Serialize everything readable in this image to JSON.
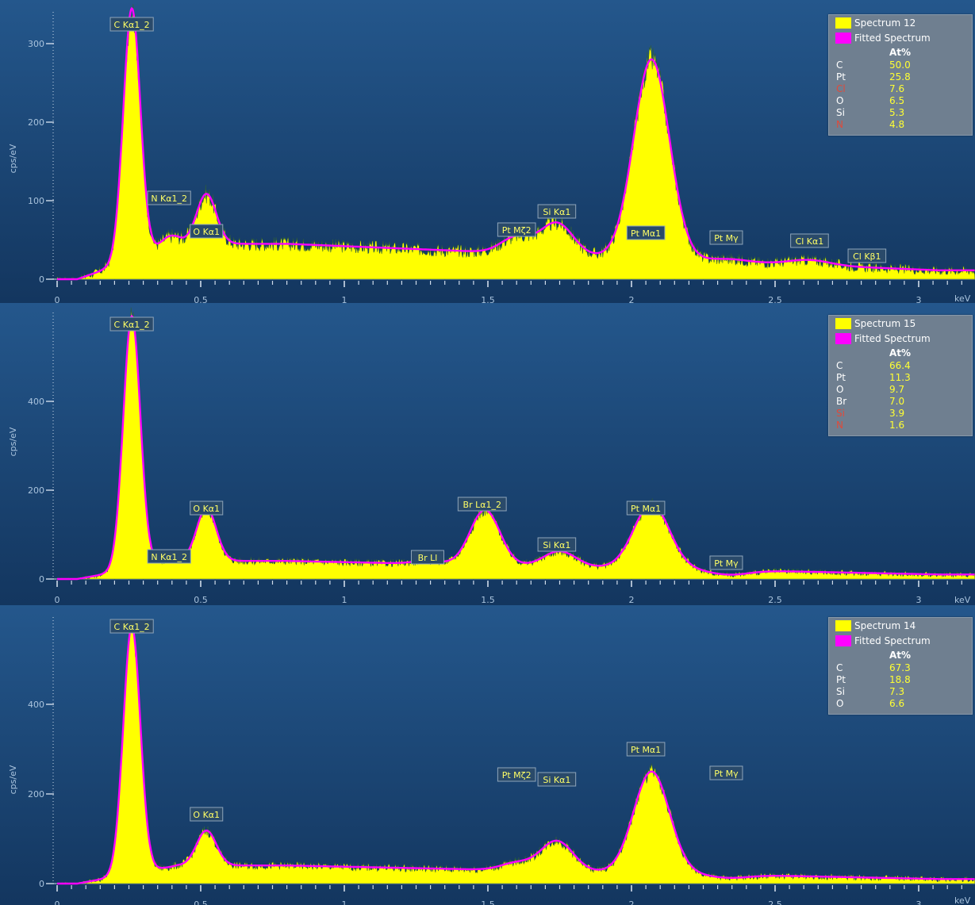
{
  "colors": {
    "background_top": "#24578c",
    "background_bottom": "#13365f",
    "spectrum": "#ffff00",
    "fit": "#ff00ff",
    "label": "#ffff66",
    "red_element": "#e04a3a"
  },
  "charts": [
    {
      "legend": {
        "spectrum": "Spectrum 12",
        "fitted": "Fitted Spectrum",
        "header": "At%",
        "elements": [
          {
            "symbol": "C",
            "value": "50.0"
          },
          {
            "symbol": "Pt",
            "value": "25.8"
          },
          {
            "symbol": "Cl",
            "value": "7.6",
            "red": true
          },
          {
            "symbol": "O",
            "value": "6.5"
          },
          {
            "symbol": "Si",
            "value": "5.3"
          },
          {
            "symbol": "N",
            "value": "4.8",
            "red": true
          }
        ]
      },
      "peak_labels": [
        {
          "text": "C Kα1_2",
          "energy": 0.26
        },
        {
          "text": "N Kα1_2",
          "energy": 0.39
        },
        {
          "text": "O Kα1",
          "energy": 0.52
        },
        {
          "text": "Pt Mζ2",
          "energy": 1.6
        },
        {
          "text": "Si Kα1",
          "energy": 1.74
        },
        {
          "text": "Pt Mα1",
          "energy": 2.05
        },
        {
          "text": "Pt Mγ",
          "energy": 2.33
        },
        {
          "text": "Cl Kα1",
          "energy": 2.62
        },
        {
          "text": "Cl Kβ1",
          "energy": 2.82
        }
      ],
      "ylabel": "cps/eV",
      "yticks": [
        "0",
        "100",
        "200",
        "300"
      ],
      "xunit": "keV"
    },
    {
      "legend": {
        "spectrum": "Spectrum 15",
        "fitted": "Fitted Spectrum",
        "header": "At%",
        "elements": [
          {
            "symbol": "C",
            "value": "66.4"
          },
          {
            "symbol": "Pt",
            "value": "11.3"
          },
          {
            "symbol": "O",
            "value": "9.7"
          },
          {
            "symbol": "Br",
            "value": "7.0"
          },
          {
            "symbol": "Si",
            "value": "3.9",
            "red": true
          },
          {
            "symbol": "N",
            "value": "1.6",
            "red": true
          }
        ]
      },
      "peak_labels": [
        {
          "text": "C Kα1_2",
          "energy": 0.26
        },
        {
          "text": "N Kα1_2",
          "energy": 0.39
        },
        {
          "text": "O Kα1",
          "energy": 0.52
        },
        {
          "text": "Br Ll",
          "energy": 1.29
        },
        {
          "text": "Br Lα1_2",
          "energy": 1.48
        },
        {
          "text": "Si Kα1",
          "energy": 1.74
        },
        {
          "text": "Pt Mα1",
          "energy": 2.05
        },
        {
          "text": "Pt Mγ",
          "energy": 2.33
        }
      ],
      "ylabel": "cps/eV",
      "yticks": [
        "0",
        "200",
        "400"
      ],
      "xunit": "keV"
    },
    {
      "legend": {
        "spectrum": "Spectrum 14",
        "fitted": "Fitted Spectrum",
        "header": "At%",
        "elements": [
          {
            "symbol": "C",
            "value": "67.3"
          },
          {
            "symbol": "Pt",
            "value": "18.8"
          },
          {
            "symbol": "Si",
            "value": "7.3"
          },
          {
            "symbol": "O",
            "value": "6.6"
          }
        ]
      },
      "peak_labels": [
        {
          "text": "C Kα1_2",
          "energy": 0.26
        },
        {
          "text": "O Kα1",
          "energy": 0.52
        },
        {
          "text": "Pt Mζ2",
          "energy": 1.6
        },
        {
          "text": "Si Kα1",
          "energy": 1.74
        },
        {
          "text": "Pt Mα1",
          "energy": 2.05
        },
        {
          "text": "Pt Mγ",
          "energy": 2.33
        }
      ],
      "ylabel": "cps/eV",
      "yticks": [
        "0",
        "200",
        "400"
      ],
      "xunit": "keV"
    }
  ],
  "chart_data": [
    {
      "type": "area",
      "title": "",
      "xlabel": "keV",
      "ylabel": "cps/eV",
      "xlim": [
        0,
        3.2
      ],
      "ylim": [
        0,
        340
      ],
      "x_ticks": [
        "0",
        "0.5",
        "1",
        "1.5",
        "2",
        "2.5",
        "3"
      ],
      "series": [
        {
          "name": "Spectrum 12",
          "peaks": [
            {
              "energy": 0.26,
              "cps": 320
            },
            {
              "energy": 0.39,
              "cps": 45
            },
            {
              "energy": 0.52,
              "cps": 95
            },
            {
              "energy": 1.6,
              "cps": 52
            },
            {
              "energy": 1.74,
              "cps": 72
            },
            {
              "energy": 2.07,
              "cps": 285
            },
            {
              "energy": 2.34,
              "cps": 35
            },
            {
              "energy": 2.62,
              "cps": 38
            }
          ],
          "background_cps": 45
        },
        {
          "name": "Fitted Spectrum"
        }
      ]
    },
    {
      "type": "area",
      "title": "",
      "xlabel": "keV",
      "ylabel": "cps/eV",
      "xlim": [
        0,
        3.2
      ],
      "ylim": [
        0,
        590
      ],
      "x_ticks": [
        "0",
        "0.5",
        "1",
        "1.5",
        "2",
        "2.5",
        "3"
      ],
      "series": [
        {
          "name": "Spectrum 15",
          "peaks": [
            {
              "energy": 0.26,
              "cps": 560
            },
            {
              "energy": 0.39,
              "cps": 35
            },
            {
              "energy": 0.52,
              "cps": 145
            },
            {
              "energy": 1.29,
              "cps": 35
            },
            {
              "energy": 1.49,
              "cps": 150
            },
            {
              "energy": 1.75,
              "cps": 62
            },
            {
              "energy": 2.07,
              "cps": 170
            },
            {
              "energy": 2.34,
              "cps": 18
            }
          ],
          "background_cps": 40
        },
        {
          "name": "Fitted Spectrum"
        }
      ]
    },
    {
      "type": "area",
      "title": "",
      "xlabel": "keV",
      "ylabel": "cps/eV",
      "xlim": [
        0,
        3.2
      ],
      "ylim": [
        0,
        560
      ],
      "x_ticks": [
        "0",
        "0.5",
        "1",
        "1.5",
        "2",
        "2.5",
        "3"
      ],
      "series": [
        {
          "name": "Spectrum 14",
          "peaks": [
            {
              "energy": 0.26,
              "cps": 520
            },
            {
              "energy": 0.52,
              "cps": 100
            },
            {
              "energy": 1.6,
              "cps": 42
            },
            {
              "energy": 1.74,
              "cps": 90
            },
            {
              "energy": 2.07,
              "cps": 240
            },
            {
              "energy": 2.34,
              "cps": 20
            }
          ],
          "background_cps": 38
        },
        {
          "name": "Fitted Spectrum"
        }
      ]
    }
  ]
}
